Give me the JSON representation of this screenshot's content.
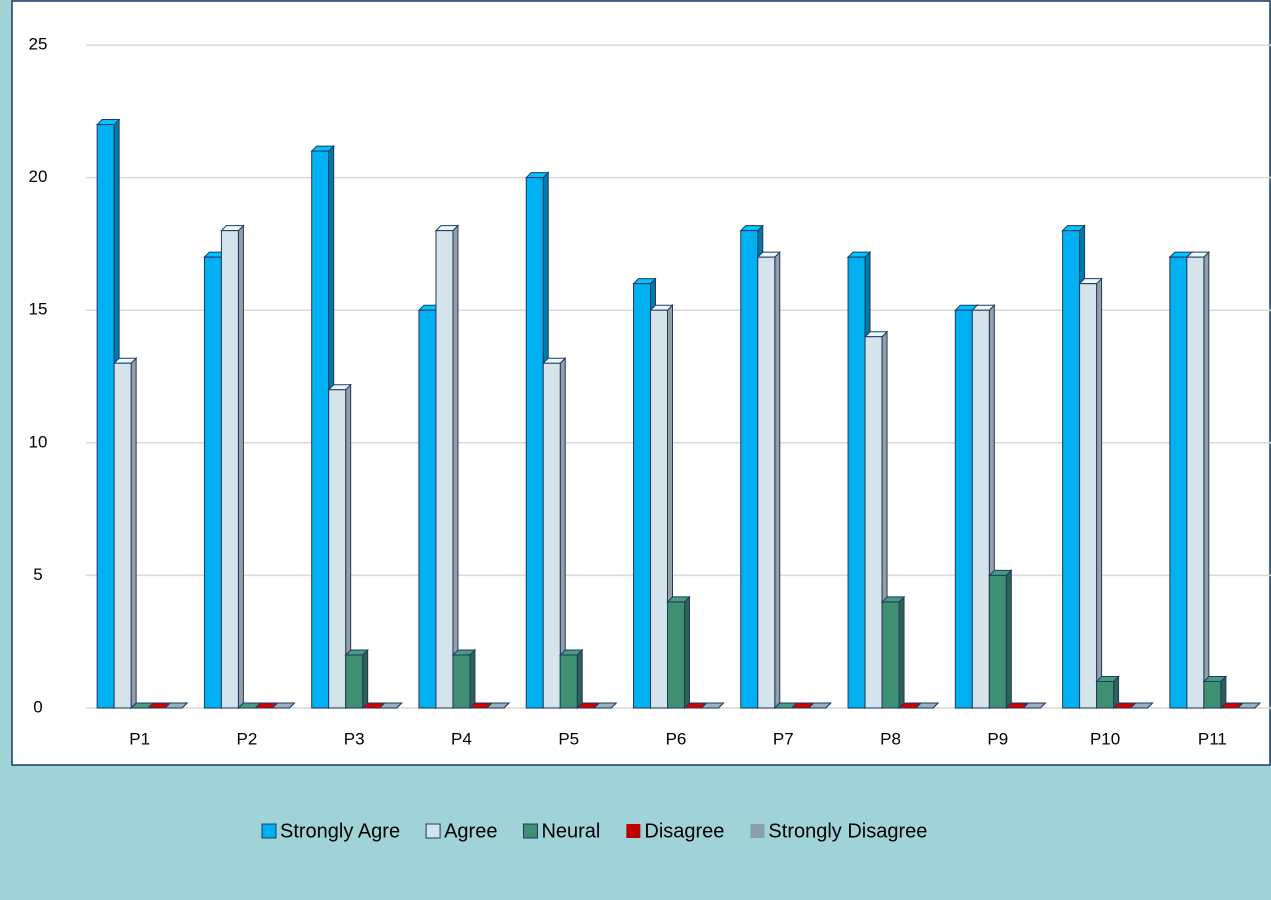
{
  "chart_data": {
    "type": "bar",
    "categories": [
      "P1",
      "P2",
      "P3",
      "P4",
      "P5",
      "P6",
      "P7",
      "P8",
      "P9",
      "P10",
      "P11"
    ],
    "series": [
      {
        "name": "Strongly Agre",
        "color": "#00b0f0",
        "values": [
          22,
          17,
          21,
          15,
          20,
          16,
          18,
          17,
          15,
          18,
          17
        ]
      },
      {
        "name": "Agree",
        "color": "#d5e3ea",
        "values": [
          13,
          18,
          12,
          18,
          13,
          15,
          17,
          14,
          15,
          16,
          17
        ]
      },
      {
        "name": "Neural",
        "color": "#3f8f73",
        "values": [
          0,
          0,
          2,
          2,
          2,
          4,
          0,
          4,
          5,
          1,
          1
        ]
      },
      {
        "name": "Disagree",
        "color": "#c00000",
        "values": [
          0,
          0,
          0,
          0,
          0,
          0,
          0,
          0,
          0,
          0,
          0
        ]
      },
      {
        "name": "Strongly Disagree",
        "color": "#8aa1ac",
        "values": [
          0,
          0,
          0,
          0,
          0,
          0,
          0,
          0,
          0,
          0,
          0
        ]
      }
    ],
    "ylim": [
      0,
      25
    ],
    "yticks": [
      0,
      5,
      10,
      15,
      20,
      25
    ],
    "grid": true,
    "legend": "bottom"
  }
}
